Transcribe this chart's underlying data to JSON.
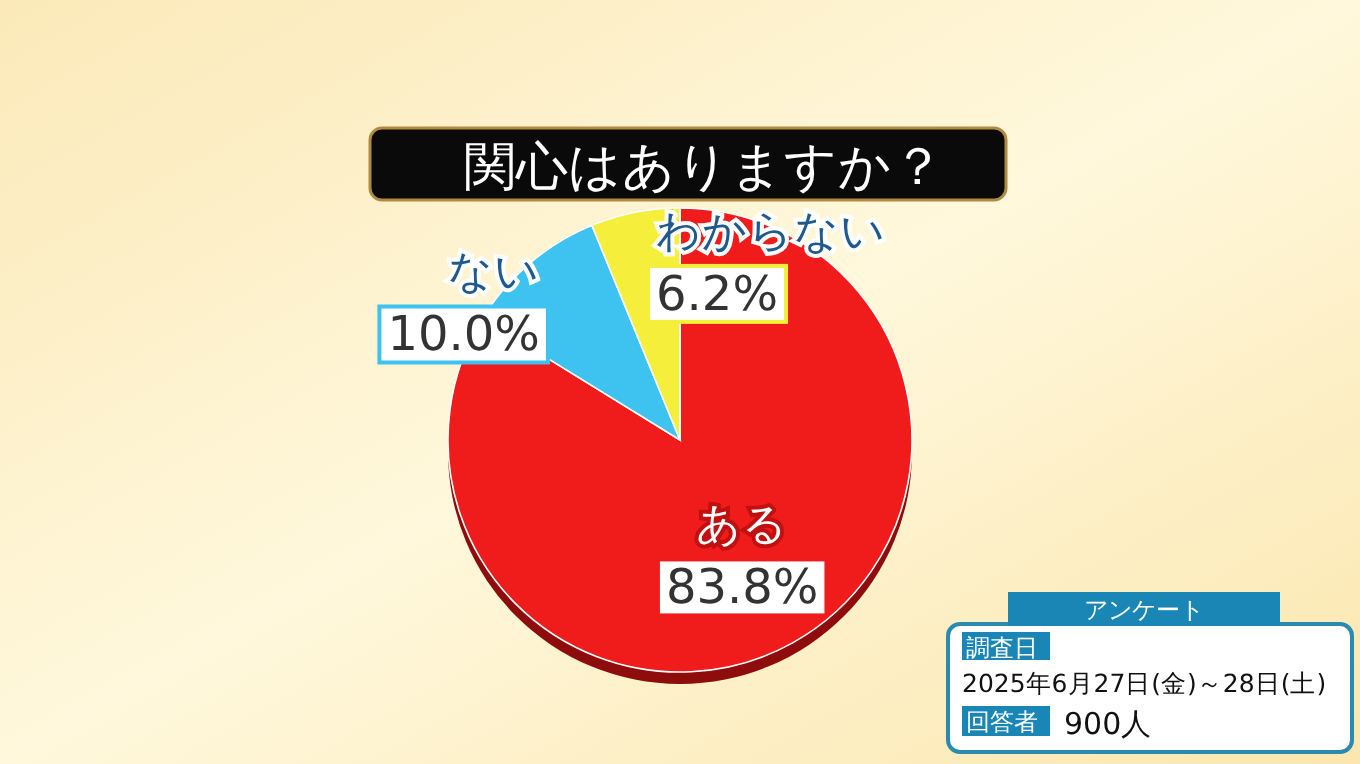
{
  "chart_data": {
    "type": "pie",
    "title": "関心はありますか？",
    "categories": [
      "ある",
      "ない",
      "わからない"
    ],
    "values": [
      83.8,
      10.0,
      6.2
    ],
    "value_labels": [
      "83.8%",
      "10.0%",
      "6.2%"
    ],
    "colors": [
      "#f01c1c",
      "#3ec3f0",
      "#f5ee3a"
    ],
    "annotations": [
      "アンケート",
      "調査日",
      "2025年6月27日(金)～28日(土)",
      "回答者",
      "900人"
    ]
  }
}
